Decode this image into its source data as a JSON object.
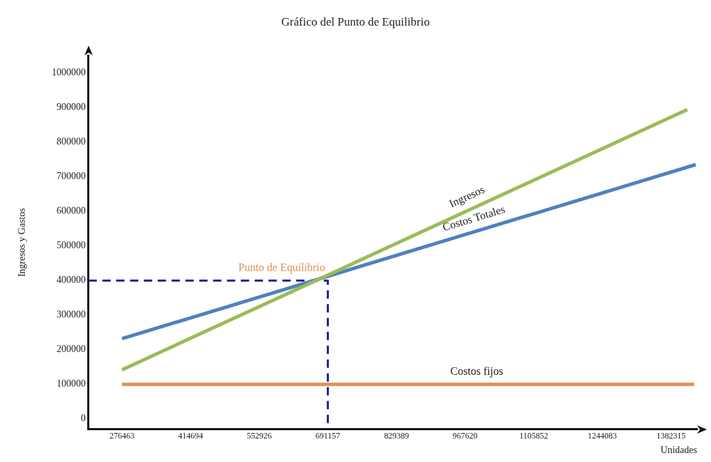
{
  "chart_data": {
    "type": "line",
    "title": "Gráfico del Punto de Equilibrio",
    "xlabel": "Unidades",
    "ylabel": "Ingresos y Gastos",
    "xlim": [
      209000,
      1435000
    ],
    "xticks": [
      276463,
      414694,
      552926,
      691157,
      829389,
      967620,
      1105852,
      1244083,
      1382315
    ],
    "ylim": [
      -30000,
      1050000
    ],
    "yticks": [
      0,
      100000,
      200000,
      300000,
      400000,
      500000,
      600000,
      700000,
      800000,
      900000,
      1000000
    ],
    "grid": false,
    "legend": false,
    "marker": "none",
    "line_style": "solid",
    "series": [
      {
        "name": "Ingresos",
        "color": "#9bbb59",
        "x": [
          276463,
          1415000
        ],
        "values": [
          142000,
          894000
        ]
      },
      {
        "name": "Costos Totales",
        "color": "#4f81bd",
        "x": [
          276463,
          1432000
        ],
        "values": [
          232000,
          735000
        ]
      },
      {
        "name": "Costos fijos",
        "color": "#e0915a",
        "x": [
          276463,
          1429000
        ],
        "values": [
          100000,
          100000
        ]
      },
      {
        "color": "#1f1f8f",
        "line_style": "dashed",
        "x": [
          209000,
          691157,
          691157
        ],
        "values": [
          400000,
          400000,
          -30000
        ]
      }
    ],
    "annotations": [
      {
        "text": "Punto de Equilibrio",
        "x": 691157,
        "y": 400000
      }
    ]
  }
}
